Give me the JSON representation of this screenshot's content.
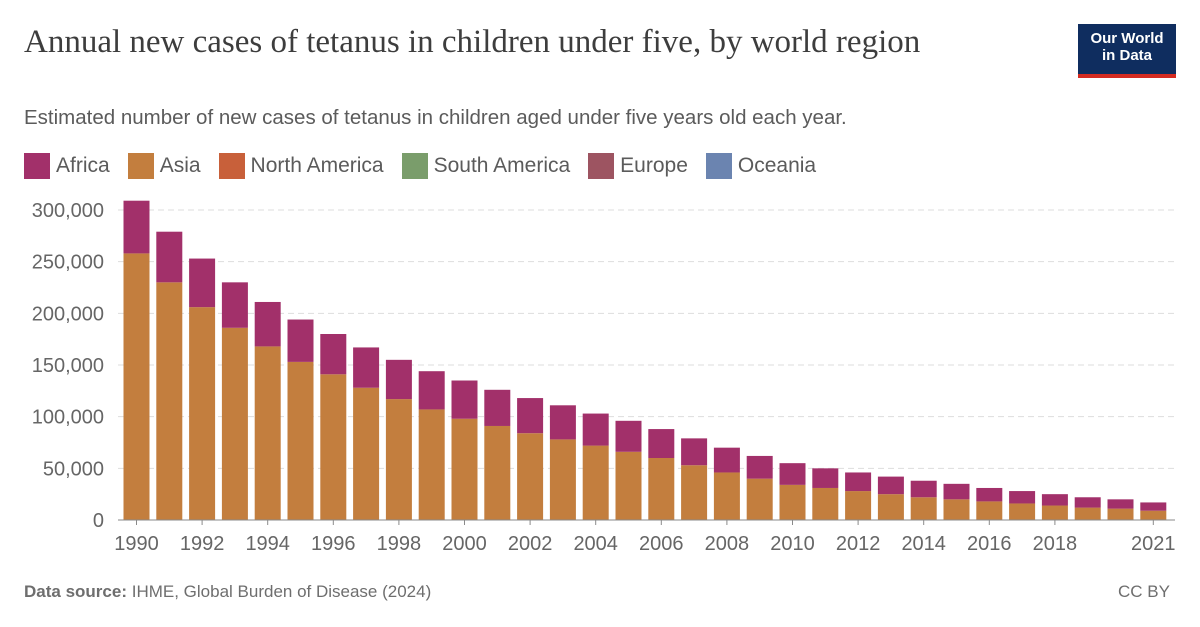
{
  "header": {
    "title": "Annual new cases of tetanus in children under five, by world region",
    "subtitle": "Estimated number of new cases of tetanus in children aged under five years old each year."
  },
  "logo": {
    "line1": "Our World",
    "line2": "in Data"
  },
  "legend": [
    {
      "label": "Africa",
      "color": "#a2306a"
    },
    {
      "label": "Asia",
      "color": "#c37e3e"
    },
    {
      "label": "North America",
      "color": "#c8603a"
    },
    {
      "label": "South America",
      "color": "#7a9d6b"
    },
    {
      "label": "Europe",
      "color": "#9d5461"
    },
    {
      "label": "Oceania",
      "color": "#6b84b0"
    }
  ],
  "footer": {
    "source_label": "Data source:",
    "source_text": "IHME, Global Burden of Disease (2024)",
    "license": "CC BY"
  },
  "chart_data": {
    "type": "bar",
    "stacked": true,
    "categories": [
      "1990",
      "1991",
      "1992",
      "1993",
      "1994",
      "1995",
      "1996",
      "1997",
      "1998",
      "1999",
      "2000",
      "2001",
      "2002",
      "2003",
      "2004",
      "2005",
      "2006",
      "2007",
      "2008",
      "2009",
      "2010",
      "2011",
      "2012",
      "2013",
      "2014",
      "2015",
      "2016",
      "2017",
      "2018",
      "2019",
      "2020",
      "2021"
    ],
    "series": [
      {
        "name": "Asia",
        "color": "#c37e3e",
        "values": [
          258000,
          230000,
          206000,
          186000,
          168000,
          153000,
          141000,
          128000,
          117000,
          107000,
          98000,
          91000,
          84000,
          78000,
          72000,
          66000,
          60000,
          53000,
          46000,
          40000,
          34000,
          31000,
          28000,
          25000,
          22000,
          20000,
          18000,
          16000,
          14000,
          12000,
          11000,
          9000
        ]
      },
      {
        "name": "Africa",
        "color": "#a2306a",
        "values": [
          51000,
          49000,
          47000,
          44000,
          43000,
          41000,
          39000,
          39000,
          38000,
          37000,
          37000,
          35000,
          34000,
          33000,
          31000,
          30000,
          28000,
          26000,
          24000,
          22000,
          21000,
          19000,
          18000,
          17000,
          16000,
          15000,
          13000,
          12000,
          11000,
          10000,
          9000,
          8000
        ]
      }
    ],
    "ylim": [
      0,
      300000
    ],
    "yticks": [
      "0",
      "50,000",
      "100,000",
      "150,000",
      "200,000",
      "250,000",
      "300,000"
    ],
    "xtick_labels": [
      "1990",
      "1992",
      "1994",
      "1996",
      "1998",
      "2000",
      "2002",
      "2004",
      "2006",
      "2008",
      "2010",
      "2012",
      "2014",
      "2016",
      "2018",
      "2021"
    ],
    "grid": true,
    "legend_position": "top-left"
  }
}
